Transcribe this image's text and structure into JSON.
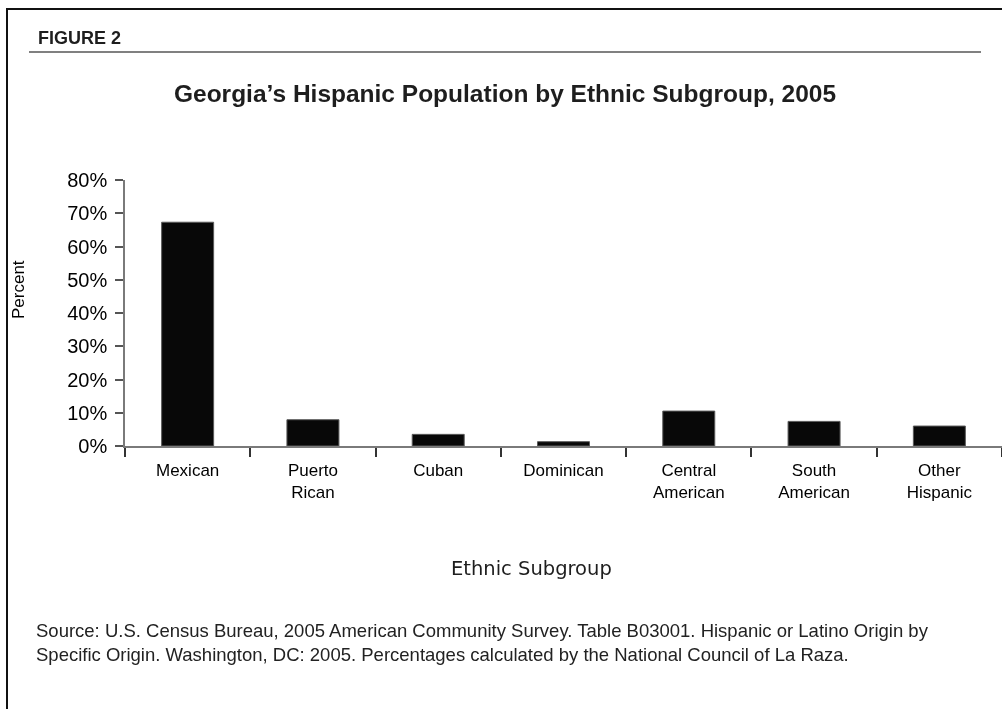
{
  "chart_data": {
    "type": "bar",
    "title": "Georgia’s Hispanic Population by Ethnic Subgroup, 2005",
    "xlabel": "Ethnic Subgroup",
    "ylabel": "Percent",
    "categories": [
      "Mexican",
      "Puerto Rican",
      "Cuban",
      "Dominican",
      "Central American",
      "South American",
      "Other Hispanic"
    ],
    "values": [
      67.3,
      7.9,
      3.5,
      1.3,
      10.5,
      7.4,
      6.0
    ],
    "color": "#080808",
    "ylim": [
      0,
      80
    ],
    "yticks": [
      {
        "value": 0,
        "label": "0%"
      },
      {
        "value": 10,
        "label": "10%"
      },
      {
        "value": 20,
        "label": "20%"
      },
      {
        "value": 30,
        "label": "30%"
      },
      {
        "value": 40,
        "label": "40%"
      },
      {
        "value": 50,
        "label": "50%"
      },
      {
        "value": 60,
        "label": "60%"
      },
      {
        "value": 70,
        "label": "70%"
      },
      {
        "value": 80,
        "label": "80%"
      }
    ],
    "grid": false,
    "annotations": [
      "FIGURE 2",
      "Source: U.S. Census Bureau, 2005 American Community Survey. Table B03001. Hispanic or Latino Origin by Specific Origin. Washington, DC: 2005. Percentages calculated by the National Council of La Raza."
    ]
  }
}
